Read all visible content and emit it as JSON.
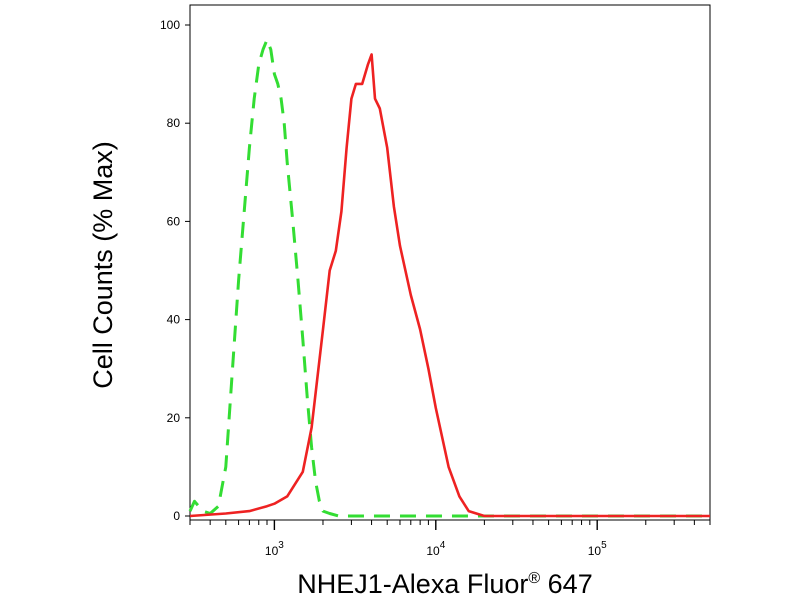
{
  "chart_data": {
    "type": "line",
    "xlabel": "NHEJ1-Alexa Fluor® 647",
    "ylabel": "Cell Counts (% Max)",
    "x_scale": "log",
    "xlim": [
      300,
      500000
    ],
    "ylim": [
      0,
      100
    ],
    "y_ticks": [
      0,
      20,
      40,
      60,
      80,
      100
    ],
    "x_ticks": [
      1000,
      10000,
      100000
    ],
    "x_tick_labels": [
      {
        "base": "10",
        "exp": "3"
      },
      {
        "base": "10",
        "exp": "4"
      },
      {
        "base": "10",
        "exp": "5"
      }
    ],
    "grid": false,
    "series": [
      {
        "color": "#33dd33",
        "dash": "dashed",
        "x": [
          300,
          320,
          360,
          400,
          450,
          500,
          550,
          600,
          650,
          700,
          750,
          800,
          850,
          900,
          950,
          1000,
          1050,
          1100,
          1150,
          1200,
          1300,
          1400,
          1500,
          1600,
          1700,
          1800,
          1900,
          2000,
          2200,
          2500,
          3000,
          5000,
          10000,
          20000,
          50000,
          100000,
          500000
        ],
        "y": [
          1,
          3,
          1,
          0.5,
          2,
          10,
          30,
          48,
          62,
          75,
          85,
          92,
          95,
          97,
          95,
          90,
          88,
          85,
          80,
          72,
          60,
          48,
          36,
          24,
          14,
          7,
          3,
          1,
          0.5,
          0,
          0,
          0,
          0,
          0,
          0,
          0,
          0
        ]
      },
      {
        "color": "#ee2222",
        "dash": "solid",
        "x": [
          300,
          500,
          700,
          900,
          1000,
          1200,
          1500,
          1700,
          2000,
          2200,
          2400,
          2600,
          2800,
          3000,
          3200,
          3500,
          3800,
          4000,
          4200,
          4500,
          5000,
          5500,
          6000,
          7000,
          8000,
          9000,
          10000,
          12000,
          14000,
          16000,
          20000,
          30000,
          100000,
          500000
        ],
        "y": [
          0,
          0.5,
          1,
          2,
          2.5,
          4,
          9,
          18,
          38,
          50,
          54,
          62,
          75,
          85,
          88,
          88,
          92,
          94,
          85,
          83,
          75,
          63,
          55,
          45,
          38,
          30,
          22,
          10,
          4,
          1,
          0,
          0,
          0,
          0
        ]
      }
    ]
  }
}
